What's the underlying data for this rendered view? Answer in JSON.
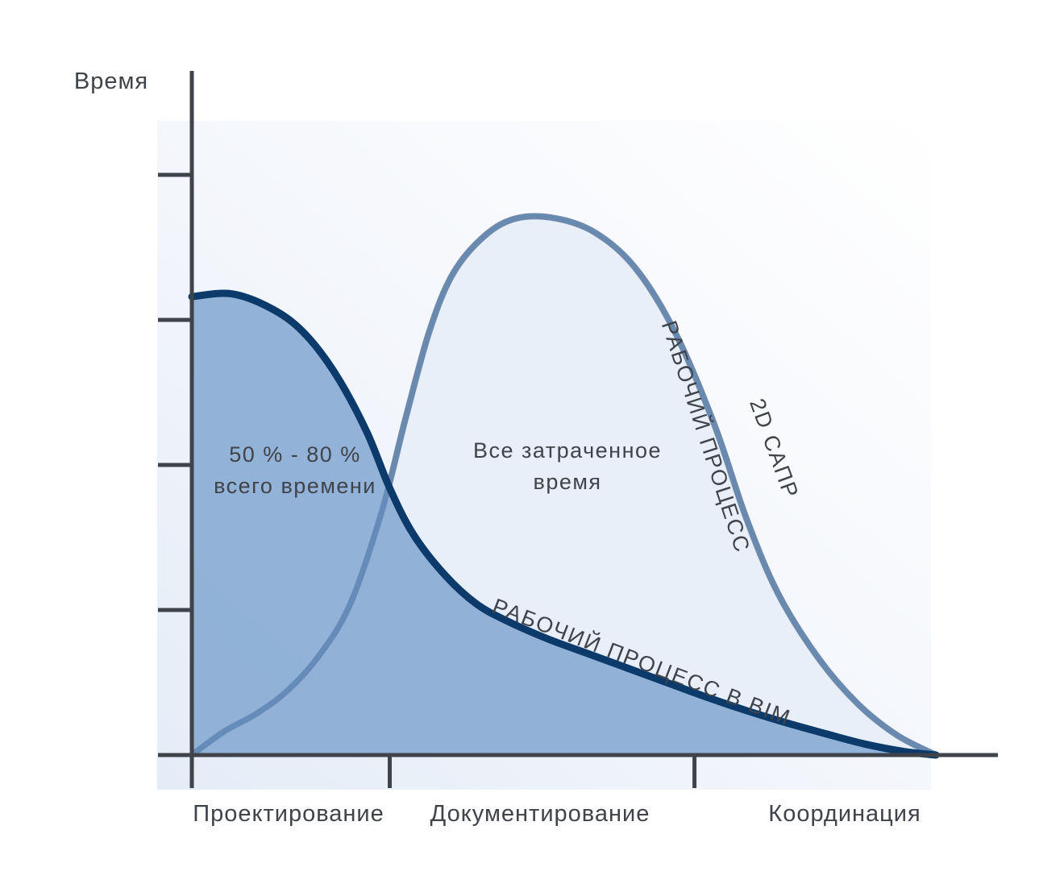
{
  "chart_data": {
    "type": "area",
    "title": "",
    "ylabel": "Время",
    "xlabel": "",
    "phases": [
      "Проектирование",
      "Документирование",
      "Координация"
    ],
    "xlim": [
      0,
      100
    ],
    "ylim": [
      0,
      100
    ],
    "y_ticks": [
      0,
      25,
      50,
      75,
      100
    ],
    "x_phase_boundaries": [
      25,
      63.5
    ],
    "grid": false,
    "legend": "none",
    "series": [
      {
        "name": "РАБОЧИЙ ПРОЦЕСС В BIM",
        "color": "#0b3a6b",
        "fill": "#7ea3d0",
        "points": [
          [
            0,
            79
          ],
          [
            5,
            79.5
          ],
          [
            10,
            77
          ],
          [
            14,
            73
          ],
          [
            18,
            66
          ],
          [
            22,
            56
          ],
          [
            25,
            46
          ],
          [
            28,
            38
          ],
          [
            32,
            31
          ],
          [
            36,
            26
          ],
          [
            40,
            23
          ],
          [
            45,
            20
          ],
          [
            50,
            17.5
          ],
          [
            55,
            15
          ],
          [
            60,
            12.5
          ],
          [
            65,
            10
          ],
          [
            70,
            7.7
          ],
          [
            75,
            5.6
          ],
          [
            80,
            3.7
          ],
          [
            85,
            1.9
          ],
          [
            90,
            0.6
          ],
          [
            94,
            0
          ]
        ]
      },
      {
        "name": "2D САПР",
        "color": "#8d9db5",
        "fill": "#e8eff9",
        "points": [
          [
            0,
            0
          ],
          [
            4,
            4
          ],
          [
            8,
            7
          ],
          [
            12,
            11
          ],
          [
            16,
            17
          ],
          [
            20,
            26
          ],
          [
            24,
            42
          ],
          [
            27,
            58
          ],
          [
            30,
            73
          ],
          [
            33,
            83
          ],
          [
            37,
            89.5
          ],
          [
            41,
            92.5
          ],
          [
            46,
            92.5
          ],
          [
            51,
            90
          ],
          [
            56,
            84
          ],
          [
            61,
            73
          ],
          [
            66,
            57
          ],
          [
            70,
            41
          ],
          [
            74,
            28
          ],
          [
            79,
            17
          ],
          [
            84,
            9
          ],
          [
            89,
            3.5
          ],
          [
            94,
            0
          ]
        ]
      }
    ],
    "annotations": {
      "bim_share_line1": "50 % - 80 %",
      "bim_share_line2": "всего времени",
      "total_time_line1": "Все затраченное",
      "total_time_line2": "время",
      "cad_curve_label_a": "2D САПР",
      "cad_curve_label_b": "РАБОЧИЙ ПРОЦЕСС",
      "bim_curve_label": "РАБОЧИЙ ПРОЦЕСС В BIM"
    }
  },
  "colors": {
    "axis": "#3f434a",
    "text": "#3f434a",
    "background_tint": "#eaf0f9"
  }
}
